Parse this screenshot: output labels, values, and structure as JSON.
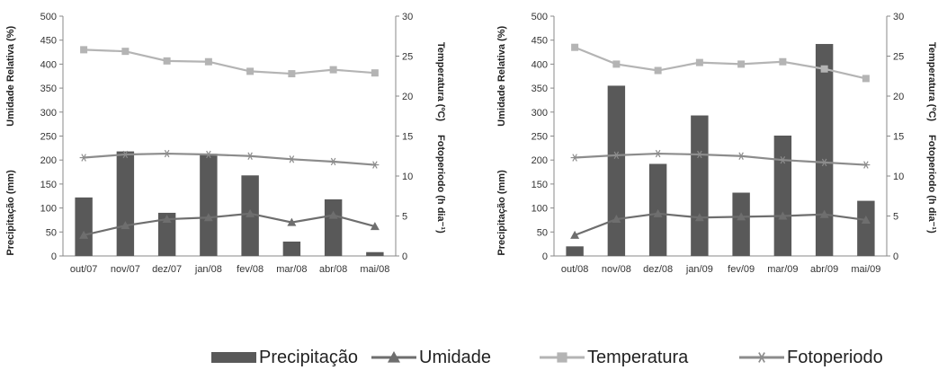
{
  "colors": {
    "precipitation": "#595959",
    "humidity": "#6e6e6e",
    "temperature": "#b4b4b4",
    "photoperiod": "#8c8c8c",
    "axis": "#888888"
  },
  "legend": {
    "position": "bottom",
    "items": [
      {
        "label": "Precipitação",
        "marker": "bar"
      },
      {
        "label": "Umidade",
        "marker": "triangle"
      },
      {
        "label": "Temperatura",
        "marker": "square"
      },
      {
        "label": "Fotoperiodo",
        "marker": "asterisk"
      }
    ]
  },
  "chart_data": [
    {
      "type": "bar",
      "categories": [
        "out/07",
        "nov/07",
        "dez/07",
        "jan/08",
        "fev/08",
        "mar/08",
        "abr/08",
        "mai/08"
      ],
      "left_axis_labels": [
        "Precipitação (mm)",
        "Umidade Relativa (%)"
      ],
      "right_axis_labels": [
        "Fotoperiodo (h dia⁻¹)",
        "Temperatura (ºC)"
      ],
      "ylim_left": [
        0,
        500
      ],
      "ylim_right": [
        0,
        30
      ],
      "yticks_left": [
        0,
        50,
        100,
        150,
        200,
        250,
        300,
        350,
        400,
        450,
        500
      ],
      "yticks_right": [
        0,
        5,
        10,
        15,
        20,
        25,
        30
      ],
      "grid": false,
      "series": [
        {
          "name": "Precipitação",
          "type": "bar",
          "axis": "left",
          "values": [
            122,
            218,
            90,
            213,
            168,
            30,
            118,
            8
          ]
        },
        {
          "name": "Umidade",
          "type": "line",
          "marker": "triangle",
          "axis": "right",
          "values": [
            2.6,
            3.8,
            4.6,
            4.8,
            5.3,
            4.2,
            5.1,
            3.7
          ]
        },
        {
          "name": "Temperatura",
          "type": "line",
          "marker": "square",
          "axis": "right",
          "values": [
            25.8,
            25.6,
            24.4,
            24.3,
            23.1,
            22.8,
            23.3,
            22.9
          ]
        },
        {
          "name": "Fotoperiodo",
          "type": "line",
          "marker": "asterisk",
          "axis": "right",
          "values": [
            12.3,
            12.7,
            12.8,
            12.7,
            12.5,
            12.1,
            11.8,
            11.4
          ]
        }
      ]
    },
    {
      "type": "bar",
      "categories": [
        "out/08",
        "nov/08",
        "dez/08",
        "jan/09",
        "fev/09",
        "mar/09",
        "abr/09",
        "mai/09"
      ],
      "left_axis_labels": [
        "Precipitação (mm)",
        "Umidade Relativa (%)"
      ],
      "right_axis_labels": [
        "Fotoperiodo (h dia⁻¹)",
        "Temperatura (ºC)"
      ],
      "ylim_left": [
        0,
        500
      ],
      "ylim_right": [
        0,
        30
      ],
      "yticks_left": [
        0,
        50,
        100,
        150,
        200,
        250,
        300,
        350,
        400,
        450,
        500
      ],
      "yticks_right": [
        0,
        5,
        10,
        15,
        20,
        25,
        30
      ],
      "grid": false,
      "series": [
        {
          "name": "Precipitação",
          "type": "bar",
          "axis": "left",
          "values": [
            20,
            355,
            192,
            293,
            132,
            251,
            442,
            115
          ]
        },
        {
          "name": "Umidade",
          "type": "line",
          "marker": "triangle",
          "axis": "right",
          "values": [
            2.6,
            4.6,
            5.3,
            4.8,
            4.9,
            5.0,
            5.2,
            4.5
          ]
        },
        {
          "name": "Temperatura",
          "type": "line",
          "marker": "square",
          "axis": "right",
          "values": [
            26.1,
            24.0,
            23.2,
            24.2,
            24.0,
            24.3,
            23.4,
            22.2
          ]
        },
        {
          "name": "Fotoperiodo",
          "type": "line",
          "marker": "asterisk",
          "axis": "right",
          "values": [
            12.3,
            12.6,
            12.8,
            12.7,
            12.5,
            12.0,
            11.7,
            11.4
          ]
        }
      ]
    }
  ]
}
